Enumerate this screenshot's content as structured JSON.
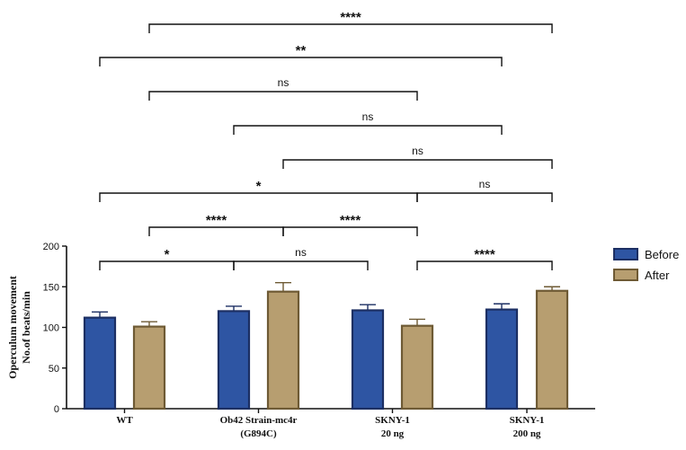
{
  "chart_data": {
    "type": "bar",
    "ylabel_lines": [
      "Operculum movement",
      "No.of beats/min"
    ],
    "ylim": [
      0,
      200
    ],
    "yticks": [
      0,
      50,
      100,
      150,
      200
    ],
    "categories": [
      [
        "WT"
      ],
      [
        "Ob42 Strain-mc4r",
        "(G894C)"
      ],
      [
        "SKNY-1",
        "20 ng"
      ],
      [
        "SKNY-1",
        "200 ng"
      ]
    ],
    "series": [
      {
        "name": "Before",
        "color": "#2e55a3",
        "values": [
          112,
          120,
          121,
          122
        ],
        "errors": [
          7,
          6,
          7,
          7
        ]
      },
      {
        "name": "After",
        "color": "#b79e70",
        "values": [
          101,
          144,
          102,
          145
        ],
        "errors": [
          6,
          11,
          8,
          5
        ]
      }
    ],
    "legend_position": "right",
    "grid": false,
    "comparisons": [
      {
        "label": "*",
        "from": 0,
        "to": 2
      },
      {
        "label": "ns",
        "from": 2,
        "to": 4
      },
      {
        "label": "****",
        "from": 5,
        "to": 7
      },
      {
        "label": "****",
        "from": 1,
        "to": 3
      },
      {
        "label": "****",
        "from": 3,
        "to": 5
      },
      {
        "label": "*",
        "from": 0,
        "to": 5
      },
      {
        "label": "ns",
        "from": 5,
        "to": 7
      },
      {
        "label": "ns",
        "from": 3,
        "to": 7
      },
      {
        "label": "ns",
        "from": 2,
        "to": 6
      },
      {
        "label": "ns",
        "from": 1,
        "to": 5
      },
      {
        "label": "**",
        "from": 0,
        "to": 6
      },
      {
        "label": "****",
        "from": 1,
        "to": 7
      }
    ]
  }
}
